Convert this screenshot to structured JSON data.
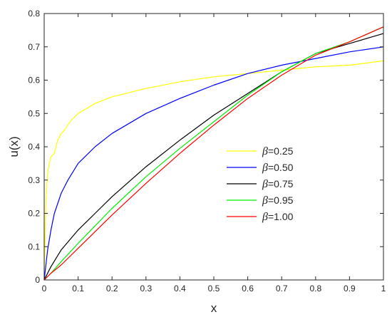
{
  "chart_data": {
    "type": "line",
    "xlabel": "x",
    "ylabel": "u(x)",
    "xlim": [
      0,
      1
    ],
    "ylim": [
      0,
      0.8
    ],
    "x_ticks": [
      "0",
      "0.1",
      "0.2",
      "0.3",
      "0.4",
      "0.5",
      "0.6",
      "0.7",
      "0.8",
      "0.9",
      "1"
    ],
    "y_ticks": [
      "0",
      "0.1",
      "0.2",
      "0.3",
      "0.4",
      "0.5",
      "0.6",
      "0.7",
      "0.8"
    ],
    "grid": false,
    "legend_position": "center-right",
    "series": [
      {
        "name": "β=0.25",
        "beta_symbol": "β",
        "beta_value": "=0.25",
        "color": "#ffff00",
        "x": [
          0,
          0.002,
          0.005,
          0.01,
          0.015,
          0.02,
          0.03,
          0.04,
          0.05,
          0.06,
          0.08,
          0.1,
          0.15,
          0.2,
          0.3,
          0.4,
          0.5,
          0.6,
          0.7,
          0.8,
          0.9,
          1.0
        ],
        "y": [
          0.005,
          0.1,
          0.24,
          0.32,
          0.35,
          0.37,
          0.38,
          0.42,
          0.44,
          0.45,
          0.48,
          0.5,
          0.53,
          0.55,
          0.575,
          0.595,
          0.61,
          0.62,
          0.63,
          0.64,
          0.645,
          0.658
        ]
      },
      {
        "name": "β=0.50",
        "beta_symbol": "β",
        "beta_value": "=0.50",
        "color": "#0000ff",
        "x": [
          0,
          0.01,
          0.02,
          0.03,
          0.05,
          0.07,
          0.1,
          0.15,
          0.2,
          0.3,
          0.4,
          0.5,
          0.6,
          0.7,
          0.8,
          0.9,
          1.0
        ],
        "y": [
          0,
          0.09,
          0.15,
          0.2,
          0.26,
          0.3,
          0.35,
          0.4,
          0.44,
          0.5,
          0.545,
          0.585,
          0.62,
          0.645,
          0.665,
          0.685,
          0.7
        ]
      },
      {
        "name": "β=0.75",
        "beta_symbol": "β",
        "beta_value": "=0.75",
        "color": "#000000",
        "x": [
          0,
          0.02,
          0.05,
          0.1,
          0.15,
          0.2,
          0.3,
          0.4,
          0.5,
          0.6,
          0.7,
          0.8,
          0.9,
          1.0
        ],
        "y": [
          0,
          0.04,
          0.09,
          0.15,
          0.2,
          0.25,
          0.34,
          0.42,
          0.495,
          0.56,
          0.625,
          0.68,
          0.71,
          0.74
        ]
      },
      {
        "name": "β=0.95",
        "beta_symbol": "β",
        "beta_value": "=0.95",
        "color": "#00ee00",
        "x": [
          0,
          0.02,
          0.05,
          0.1,
          0.2,
          0.3,
          0.4,
          0.5,
          0.6,
          0.7,
          0.8,
          0.9,
          1.0
        ],
        "y": [
          0,
          0.02,
          0.055,
          0.11,
          0.215,
          0.31,
          0.395,
          0.475,
          0.555,
          0.625,
          0.68,
          0.715,
          0.76
        ]
      },
      {
        "name": "β=1.00",
        "beta_symbol": "β",
        "beta_value": "=1.00",
        "color": "#ff0000",
        "x": [
          0,
          0.02,
          0.05,
          0.1,
          0.2,
          0.3,
          0.4,
          0.5,
          0.6,
          0.7,
          0.8,
          0.9,
          1.0
        ],
        "y": [
          0,
          0.02,
          0.045,
          0.095,
          0.195,
          0.29,
          0.38,
          0.465,
          0.545,
          0.615,
          0.675,
          0.715,
          0.76
        ]
      }
    ]
  }
}
